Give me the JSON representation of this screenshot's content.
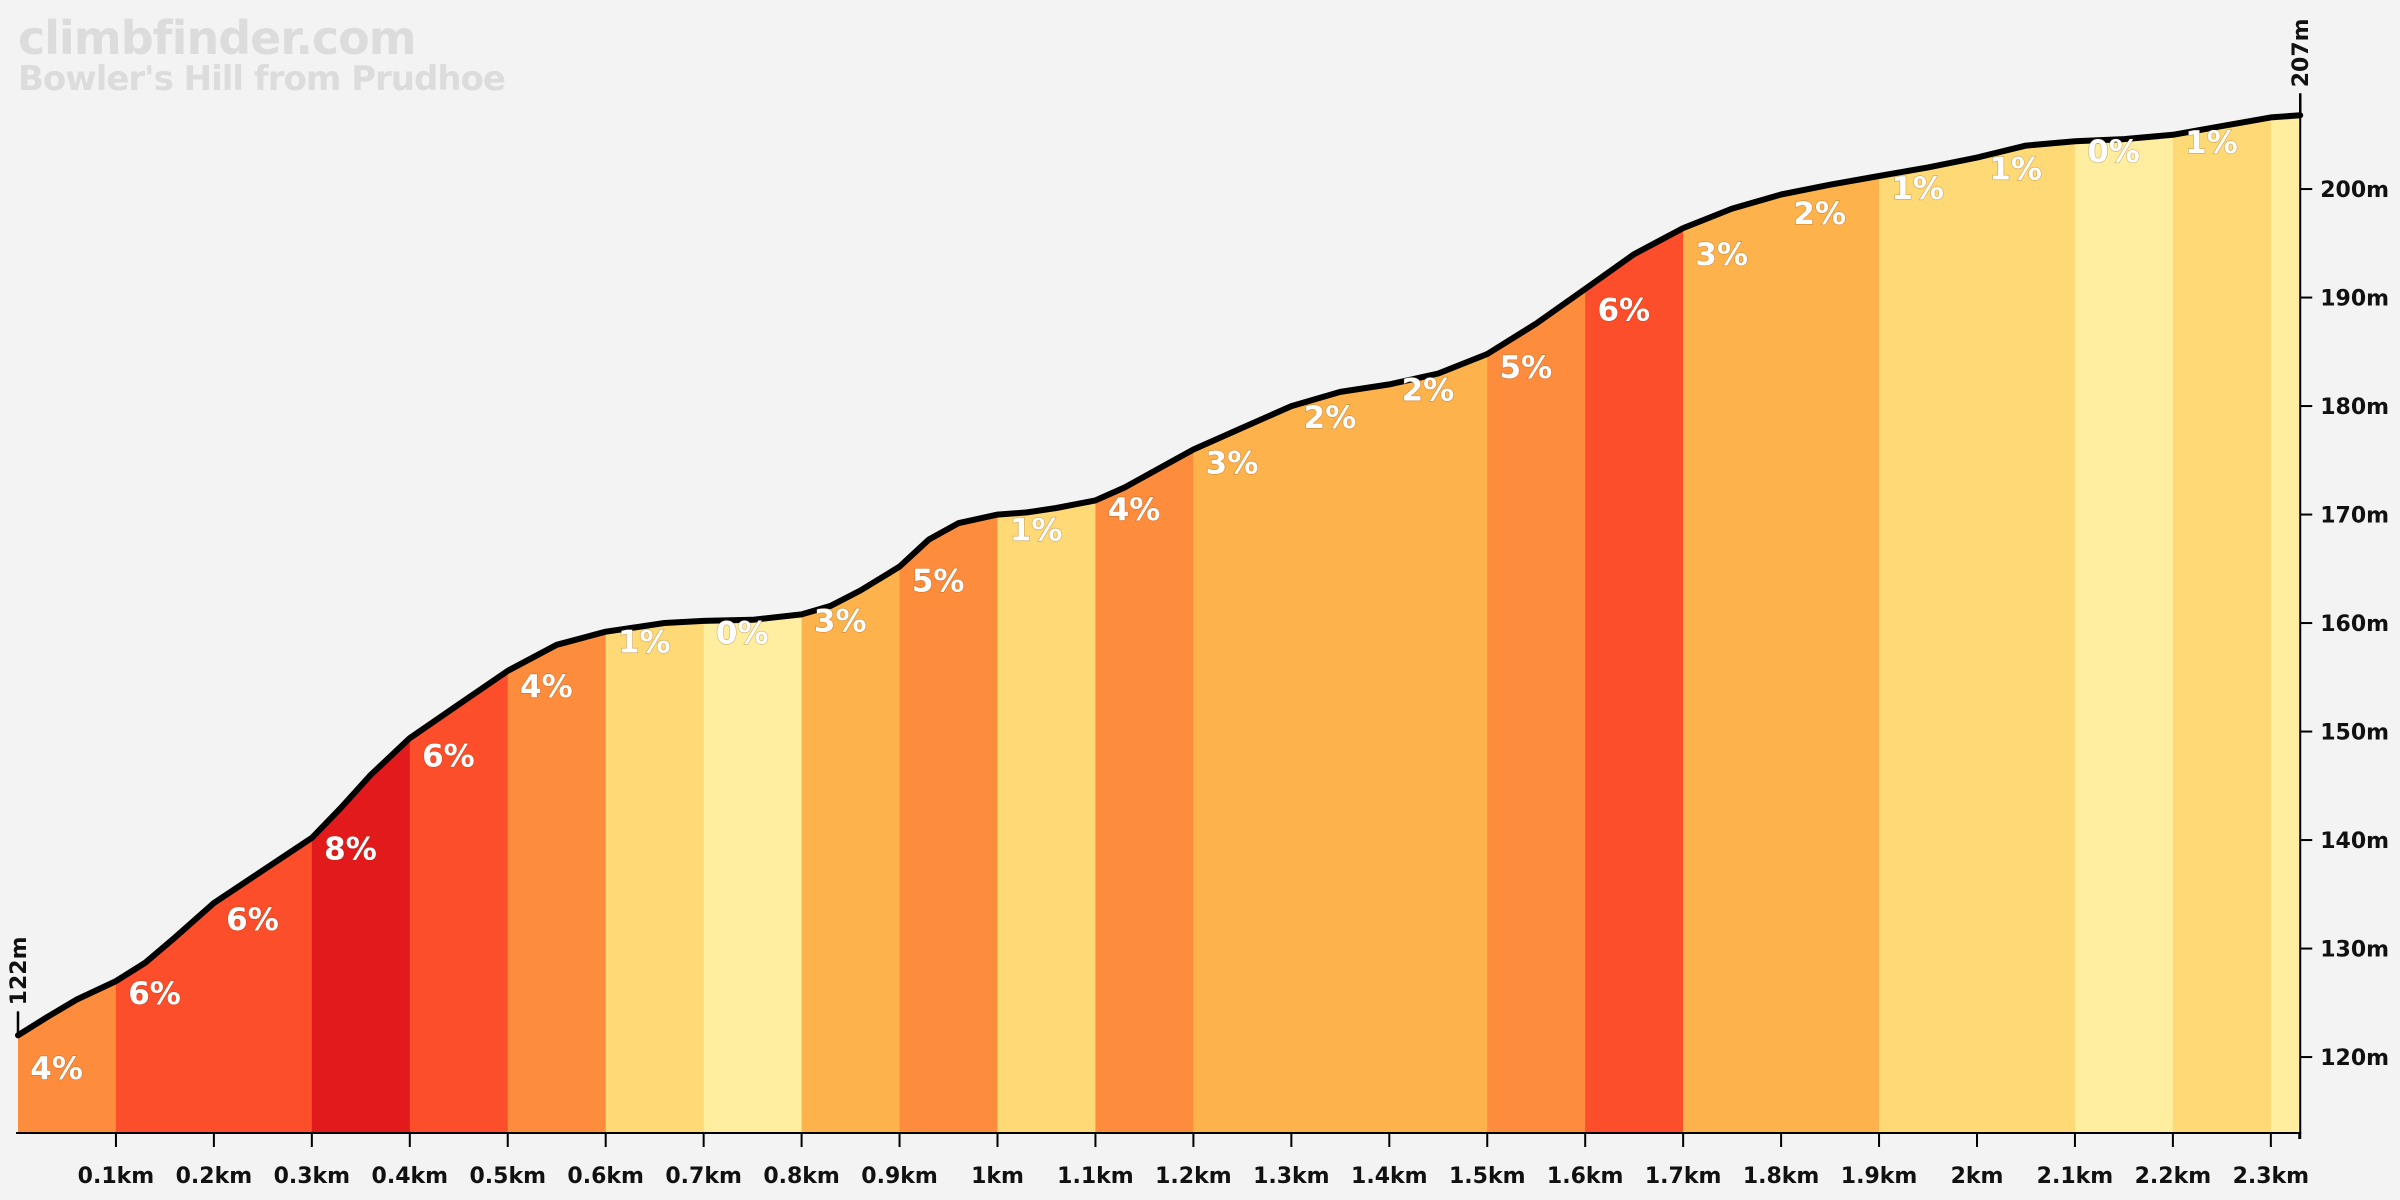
{
  "branding": {
    "site": "climbfinder.com",
    "climb_name": "Bowler's Hill from Prudhoe"
  },
  "chart_data": {
    "type": "area",
    "title": "Bowler's Hill from Prudhoe",
    "xlabel": "",
    "ylabel": "",
    "x_unit": "km",
    "y_unit": "m",
    "xlim": [
      0,
      2.33
    ],
    "ylim": [
      113,
      207
    ],
    "x_ticks": [
      "0.1km",
      "0.2km",
      "0.3km",
      "0.4km",
      "0.5km",
      "0.6km",
      "0.7km",
      "0.8km",
      "0.9km",
      "1km",
      "1.1km",
      "1.2km",
      "1.3km",
      "1.4km",
      "1.5km",
      "1.6km",
      "1.7km",
      "1.8km",
      "1.9km",
      "2km",
      "2.1km",
      "2.2km",
      "2.3km"
    ],
    "x_tick_values": [
      0.1,
      0.2,
      0.3,
      0.4,
      0.5,
      0.6,
      0.7,
      0.8,
      0.9,
      1.0,
      1.1,
      1.2,
      1.3,
      1.4,
      1.5,
      1.6,
      1.7,
      1.8,
      1.9,
      2.0,
      2.1,
      2.2,
      2.3
    ],
    "y_ticks": [
      "120m",
      "130m",
      "140m",
      "150m",
      "160m",
      "170m",
      "180m",
      "190m",
      "200m"
    ],
    "y_tick_values": [
      120,
      130,
      140,
      150,
      160,
      170,
      180,
      190,
      200
    ],
    "start_elevation_label": "122m",
    "end_elevation_label": "207m",
    "profile": {
      "x": [
        0,
        0.03,
        0.06,
        0.1,
        0.13,
        0.16,
        0.2,
        0.25,
        0.3,
        0.33,
        0.36,
        0.4,
        0.45,
        0.5,
        0.55,
        0.6,
        0.63,
        0.66,
        0.7,
        0.75,
        0.8,
        0.83,
        0.86,
        0.9,
        0.93,
        0.96,
        1.0,
        1.03,
        1.06,
        1.1,
        1.13,
        1.16,
        1.2,
        1.25,
        1.3,
        1.35,
        1.4,
        1.45,
        1.5,
        1.55,
        1.6,
        1.65,
        1.7,
        1.75,
        1.8,
        1.85,
        1.9,
        1.95,
        2.0,
        2.05,
        2.1,
        2.15,
        2.2,
        2.25,
        2.3,
        2.33
      ],
      "y": [
        122,
        123.7,
        125.3,
        127,
        128.7,
        131,
        134.2,
        137.2,
        140.2,
        143,
        146,
        149.4,
        152.5,
        155.6,
        158,
        159.2,
        159.6,
        160,
        160.2,
        160.3,
        160.8,
        161.6,
        163,
        165.2,
        167.7,
        169.2,
        170,
        170.2,
        170.6,
        171.3,
        172.5,
        174,
        176,
        178,
        180,
        181.3,
        182,
        183,
        184.8,
        187.6,
        190.8,
        194,
        196.4,
        198.2,
        199.5,
        200.4,
        201.2,
        202,
        202.9,
        204,
        204.4,
        204.6,
        205,
        205.8,
        206.6,
        206.8
      ]
    },
    "segments": [
      {
        "start": 0.0,
        "end": 0.1,
        "grade_label": "4%",
        "color": "#fd8d3c",
        "label_y": 118
      },
      {
        "start": 0.1,
        "end": 0.3,
        "grade_label": "6%",
        "color": "#fc4e2a",
        "label_y": 124.9
      },
      {
        "start": 0.1,
        "end": 0.3,
        "grade_label": "6%",
        "color": "#fc4e2a",
        "label_y": 131.7,
        "label_x": 0.235
      },
      {
        "start": 0.3,
        "end": 0.4,
        "grade_label": "8%",
        "color": "#e31a1c",
        "label_y": 138.2
      },
      {
        "start": 0.4,
        "end": 0.5,
        "grade_label": "6%",
        "color": "#fc4e2a",
        "label_y": 146.8
      },
      {
        "start": 0.5,
        "end": 0.6,
        "grade_label": "4%",
        "color": "#fd8d3c",
        "label_y": 153.2
      },
      {
        "start": 0.6,
        "end": 0.7,
        "grade_label": "1%",
        "color": "#fed976",
        "label_y": 157.3
      },
      {
        "start": 0.7,
        "end": 0.8,
        "grade_label": "0%",
        "color": "#ffeda0",
        "label_y": 158.1
      },
      {
        "start": 0.8,
        "end": 0.9,
        "grade_label": "3%",
        "color": "#feb24c",
        "label_y": 159.2
      },
      {
        "start": 0.9,
        "end": 1.0,
        "grade_label": "5%",
        "color": "#fd8d3c",
        "label_y": 162.9
      },
      {
        "start": 1.0,
        "end": 1.1,
        "grade_label": "1%",
        "color": "#fed976",
        "label_y": 167.6
      },
      {
        "start": 1.1,
        "end": 1.2,
        "grade_label": "4%",
        "color": "#fd8d3c",
        "label_y": 169.5
      },
      {
        "start": 1.2,
        "end": 1.5,
        "grade_label": "3%",
        "color": "#feb24c",
        "label_y": 173.8,
        "label_x": 1.235
      },
      {
        "start": 1.2,
        "end": 1.5,
        "grade_label": "2%",
        "color": "#feb24c",
        "label_y": 178,
        "label_x": 1.335
      },
      {
        "start": 1.2,
        "end": 1.5,
        "grade_label": "2%",
        "color": "#feb24c",
        "label_y": 180.5,
        "label_x": 1.435
      },
      {
        "start": 1.5,
        "end": 1.6,
        "grade_label": "5%",
        "color": "#fd8d3c",
        "label_y": 182.6
      },
      {
        "start": 1.6,
        "end": 1.7,
        "grade_label": "6%",
        "color": "#fc4e2a",
        "label_y": 187.9
      },
      {
        "start": 1.7,
        "end": 1.9,
        "grade_label": "3%",
        "color": "#feb24c",
        "label_y": 193
      },
      {
        "start": 1.7,
        "end": 1.9,
        "grade_label": "2%",
        "color": "#feb24c",
        "label_y": 196.8,
        "label_x": 1.835
      },
      {
        "start": 1.9,
        "end": 2.1,
        "grade_label": "1%",
        "color": "#fed976",
        "label_y": 199.1
      },
      {
        "start": 1.9,
        "end": 2.1,
        "grade_label": "1%",
        "color": "#fed976",
        "label_y": 200.9,
        "label_x": 2.035
      },
      {
        "start": 2.1,
        "end": 2.2,
        "grade_label": "0%",
        "color": "#ffeda0",
        "label_y": 202.5
      },
      {
        "start": 2.2,
        "end": 2.3,
        "grade_label": "1%",
        "color": "#fed976",
        "label_y": 203.3
      },
      {
        "start": 2.3,
        "end": 2.33,
        "grade_label": "",
        "color": "#ffeda0",
        "label_y": 0
      }
    ],
    "colors": {
      "background": "#f3f3f3",
      "profile_line": "#000000",
      "label_text": "#ffffff"
    }
  }
}
